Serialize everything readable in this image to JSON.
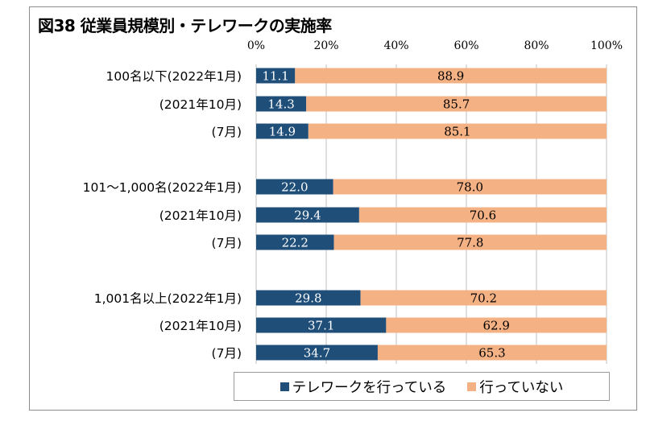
{
  "title": "図38 従業員規模別・テレワークの実施率",
  "colors": {
    "telework": "#1f4e79",
    "not_telework": "#f4b183",
    "grid": "#bfbfbf"
  },
  "chart_data": {
    "type": "bar",
    "orientation": "horizontal",
    "stacked": "percent",
    "title": "図38 従業員規模別・テレワークの実施率",
    "categories": [
      "100名以下(2022年1月)",
      "(2021年10月)",
      "(7月)",
      "101～1,000名(2022年1月)",
      "(2021年10月)",
      "(7月)",
      "1,001名以上(2022年1月)",
      "(2021年10月)",
      "(7月)"
    ],
    "groups": [
      [
        0,
        1,
        2
      ],
      [
        3,
        4,
        5
      ],
      [
        6,
        7,
        8
      ]
    ],
    "series": [
      {
        "name": "テレワークを行っている",
        "values": [
          11.1,
          14.3,
          14.9,
          22.0,
          29.4,
          22.2,
          29.8,
          37.1,
          34.7
        ],
        "labels": [
          "11.1",
          "14.3",
          "14.9",
          "22.0",
          "29.4",
          "22.2",
          "29.8",
          "37.1",
          "34.7"
        ]
      },
      {
        "name": "行っていない",
        "values": [
          88.9,
          85.7,
          85.1,
          78.0,
          70.6,
          77.8,
          70.2,
          62.9,
          65.3
        ],
        "labels": [
          "88.9",
          "85.7",
          "85.1",
          "78.0",
          "70.6",
          "77.8",
          "70.2",
          "62.9",
          "65.3"
        ]
      }
    ],
    "xlim": [
      0,
      100
    ],
    "xticks": [
      "0%",
      "20%",
      "40%",
      "60%",
      "80%",
      "100%"
    ],
    "grid": true,
    "legend_position": "bottom"
  }
}
